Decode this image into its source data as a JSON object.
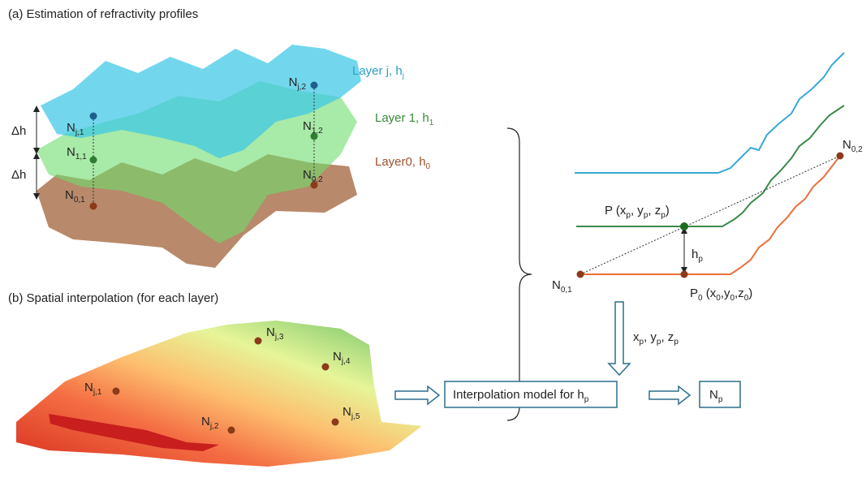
{
  "panel_a": {
    "title": "(a) Estimation of refractivity profiles",
    "layers": [
      {
        "label": [
          "Layer j, h",
          "j"
        ]
      },
      {
        "label": [
          "Layer 1, h",
          "1"
        ]
      },
      {
        "label": [
          "Layer0, h",
          "0"
        ]
      }
    ],
    "delta_h": [
      "Δh",
      "Δh"
    ],
    "points": [
      [
        "N",
        "j,1"
      ],
      [
        "N",
        "1,1"
      ],
      [
        "N",
        "0,1"
      ],
      [
        "N",
        "j,2"
      ],
      [
        "N",
        "1,2"
      ],
      [
        "N",
        "0,2"
      ]
    ]
  },
  "panel_b": {
    "title": "(b) Spatial interpolation (for each layer)",
    "points": [
      [
        "N",
        "j,1"
      ],
      [
        "N",
        "j,2"
      ],
      [
        "N",
        "j,3"
      ],
      [
        "N",
        "j,4"
      ],
      [
        "N",
        "j,5"
      ]
    ]
  },
  "profile": {
    "n01": [
      "N",
      "0,1"
    ],
    "n02": [
      "N",
      "0,2"
    ],
    "p": [
      "P (x",
      "p",
      ", y",
      "p",
      ", z",
      "p",
      ")"
    ],
    "p0": [
      "P",
      "0",
      " (x",
      "0",
      ",y",
      "0",
      ",z",
      "0",
      ")"
    ],
    "hp": [
      "h",
      "p"
    ]
  },
  "model": {
    "inputs": [
      "x",
      "p",
      ", y",
      "p",
      ", z",
      "p"
    ],
    "box": [
      "Interpolation model for h",
      "p"
    ],
    "output": [
      "N",
      "p"
    ]
  }
}
